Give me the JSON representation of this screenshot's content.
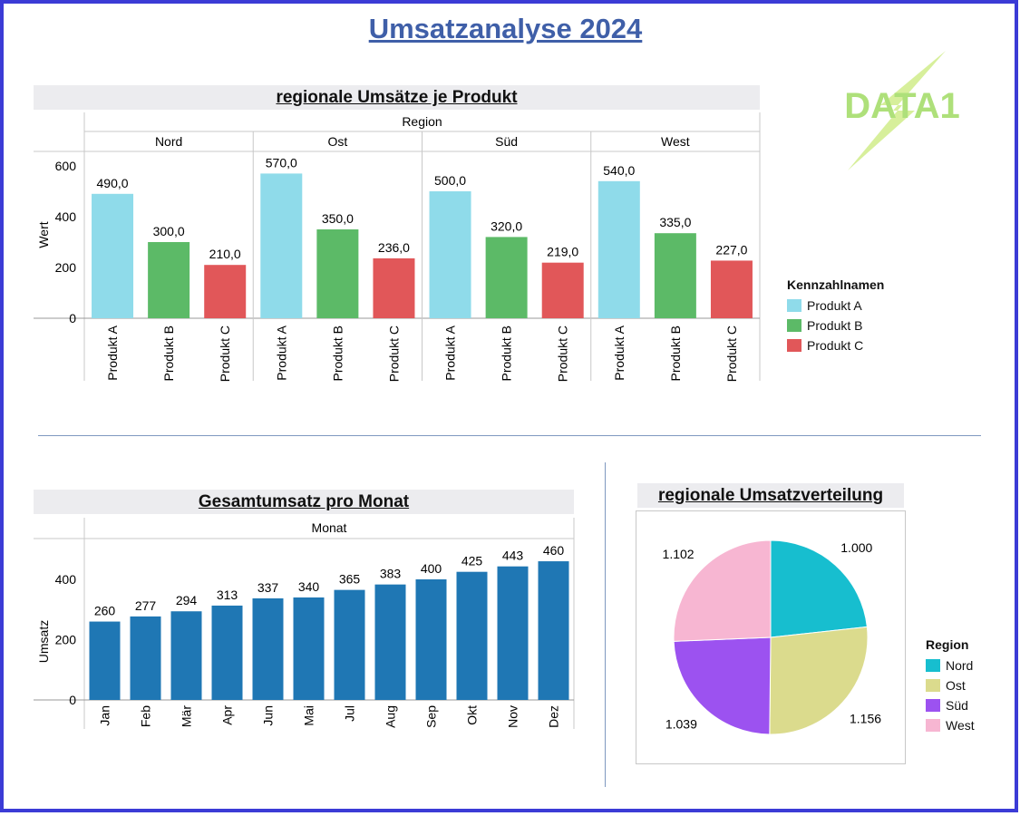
{
  "page": {
    "title": "Umsatzanalyse 2024"
  },
  "logo": {
    "text": "DATA1"
  },
  "colors": {
    "frame": "#3b3bd6",
    "title": "#3f5fa8",
    "produkt_a": "#8fdbea",
    "produkt_b": "#5cba67",
    "produkt_c": "#e15759",
    "monat_bar": "#1f77b4",
    "nord": "#17becf",
    "ost": "#dbdb8d",
    "sued": "#9c52f0",
    "west": "#f7b6d2"
  },
  "chart_data": [
    {
      "type": "bar",
      "title": "regionale Umsätze je Produkt",
      "column_header": "Region",
      "panels": [
        "Nord",
        "Ost",
        "Süd",
        "West"
      ],
      "categories": [
        "Produkt A",
        "Produkt B",
        "Produkt C"
      ],
      "values": {
        "Nord": [
          490,
          300,
          210
        ],
        "Ost": [
          570,
          350,
          236
        ],
        "Süd": [
          500,
          320,
          219
        ],
        "West": [
          540,
          335,
          227
        ]
      },
      "labels": {
        "Nord": [
          "490,0",
          "300,0",
          "210,0"
        ],
        "Ost": [
          "570,0",
          "350,0",
          "236,0"
        ],
        "Süd": [
          "500,0",
          "320,0",
          "219,0"
        ],
        "West": [
          "540,0",
          "335,0",
          "227,0"
        ]
      },
      "ylabel": "Wert",
      "ylim": [
        0,
        650
      ],
      "yticks": [
        0,
        200,
        400,
        600
      ],
      "legend": {
        "title": "Kennzahlnamen",
        "placement": "right",
        "items": [
          "Produkt A",
          "Produkt B",
          "Produkt C"
        ]
      }
    },
    {
      "type": "bar",
      "title": "Gesamtumsatz pro Monat",
      "column_header": "Monat",
      "categories": [
        "Jan",
        "Feb",
        "Mär",
        "Apr",
        "Jun",
        "Mai",
        "Jul",
        "Aug",
        "Sep",
        "Okt",
        "Nov",
        "Dez"
      ],
      "values": [
        260,
        277,
        294,
        313,
        337,
        340,
        365,
        383,
        400,
        425,
        443,
        460
      ],
      "ylabel": "Umsatz",
      "ylim": [
        0,
        540
      ],
      "yticks": [
        0,
        200,
        400
      ]
    },
    {
      "type": "pie",
      "title": "regionale Umsatzverteilung",
      "categories": [
        "Nord",
        "Ost",
        "Süd",
        "West"
      ],
      "values": [
        1000,
        1156,
        1039,
        1102
      ],
      "labels": [
        "1.000",
        "1.156",
        "1.039",
        "1.102"
      ],
      "legend": {
        "title": "Region",
        "placement": "right",
        "items": [
          "Nord",
          "Ost",
          "Süd",
          "West"
        ]
      }
    }
  ]
}
